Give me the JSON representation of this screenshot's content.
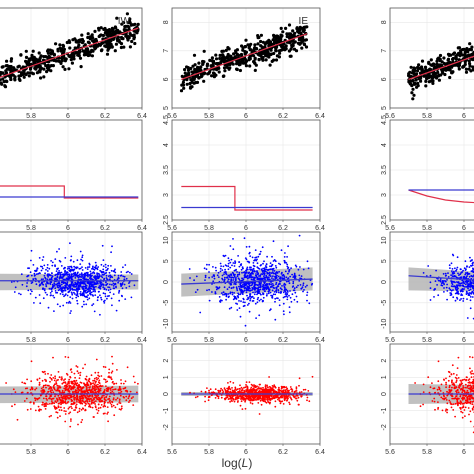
{
  "figure": {
    "xlabel_prefix": "log(",
    "xlabel_var": "L",
    "xlabel_suffix": ")"
  },
  "colors": {
    "points_black": "#000000",
    "points_blue": "#0000ff",
    "points_red": "#ff0000",
    "fit_red": "#e0304a",
    "fit_blue": "#3a3ad0",
    "band_gray": "#b5b5b5",
    "zero_line": "#666666",
    "grid": "#e6e6e6"
  },
  "chart_data": [
    {
      "type": "scatter",
      "panel": "row1-col1",
      "panel_label": "IW",
      "xlim": [
        5.6,
        6.4
      ],
      "ylim": [
        5,
        8.5
      ],
      "x_ticks": [
        "5.8",
        "6",
        "6.2",
        "6.4"
      ],
      "y_ticks": [],
      "series": [
        {
          "kind": "points",
          "color": "black",
          "trend": {
            "x": [
              5.6,
              6.38
            ],
            "y": [
              6.0,
              7.8
            ]
          },
          "spread": 0.22
        },
        {
          "kind": "fit_line",
          "color": "red",
          "x": [
            5.6,
            6.38
          ],
          "y": [
            6.0,
            7.8
          ]
        }
      ]
    },
    {
      "type": "scatter",
      "panel": "row1-col2",
      "panel_label": "IE",
      "xlim": [
        5.6,
        6.4
      ],
      "ylim": [
        5,
        8.5
      ],
      "x_ticks": [
        "5.6",
        "5.8",
        "6",
        "6.2",
        "6.4"
      ],
      "y_ticks": [
        "5",
        "6",
        "7",
        "8"
      ],
      "series": [
        {
          "kind": "points",
          "color": "black",
          "trend": {
            "x": [
              5.65,
              6.33
            ],
            "y": [
              6.0,
              7.6
            ]
          },
          "spread": 0.22
        },
        {
          "kind": "fit_line",
          "color": "red",
          "x": [
            5.65,
            6.33
          ],
          "y": [
            6.0,
            7.6
          ]
        }
      ]
    },
    {
      "type": "scatter",
      "panel": "row1-col3",
      "panel_label": "",
      "xlim": [
        5.6,
        6.4
      ],
      "ylim": [
        5,
        8.5
      ],
      "x_ticks": [
        "5.6",
        "5.8",
        "6"
      ],
      "y_ticks": [
        "5",
        "6",
        "7",
        "8"
      ],
      "series": [
        {
          "kind": "points",
          "color": "black",
          "trend": {
            "x": [
              5.7,
              6.4
            ],
            "y": [
              6.0,
              7.6
            ]
          },
          "spread": 0.22
        },
        {
          "kind": "fit_line",
          "color": "red",
          "x": [
            5.7,
            6.4
          ],
          "y": [
            6.0,
            7.6
          ]
        }
      ]
    },
    {
      "type": "line",
      "panel": "row2-col1",
      "xlim": [
        5.6,
        6.4
      ],
      "ylim": [
        2.5,
        4.5
      ],
      "x_ticks": [
        "5.8",
        "6",
        "6.2",
        "6.4"
      ],
      "y_ticks": [],
      "series": [
        {
          "kind": "step_line",
          "color": "red",
          "x": [
            5.6,
            5.98,
            5.98,
            6.38
          ],
          "y": [
            3.18,
            3.18,
            2.94,
            2.94
          ]
        },
        {
          "kind": "step_line",
          "color": "blue",
          "x": [
            5.6,
            6.38
          ],
          "y": [
            2.96,
            2.96
          ]
        }
      ]
    },
    {
      "type": "line",
      "panel": "row2-col2",
      "xlim": [
        5.6,
        6.4
      ],
      "ylim": [
        2.5,
        4.5
      ],
      "x_ticks": [
        "5.6",
        "5.8",
        "6",
        "6.2",
        "6.4"
      ],
      "y_ticks": [
        "2.5",
        "3",
        "3.5",
        "4",
        "4.5"
      ],
      "series": [
        {
          "kind": "step_line",
          "color": "red",
          "x": [
            5.65,
            5.94,
            5.94,
            6.36
          ],
          "y": [
            3.17,
            3.17,
            2.7,
            2.7
          ]
        },
        {
          "kind": "step_line",
          "color": "blue",
          "x": [
            5.65,
            6.36
          ],
          "y": [
            2.75,
            2.75
          ]
        }
      ]
    },
    {
      "type": "line",
      "panel": "row2-col3",
      "xlim": [
        5.6,
        6.4
      ],
      "ylim": [
        2.5,
        4.5
      ],
      "x_ticks": [
        "5.6",
        "5.8",
        "6"
      ],
      "y_ticks": [
        "2.5",
        "3",
        "3.5",
        "4",
        "4.5"
      ],
      "series": [
        {
          "kind": "curve",
          "color": "red",
          "x": [
            5.7,
            5.8,
            5.9,
            6.0,
            6.1,
            6.25,
            6.3,
            6.3,
            6.4
          ],
          "y": [
            3.1,
            2.98,
            2.9,
            2.86,
            2.84,
            2.86,
            2.98,
            3.55,
            3.62
          ]
        },
        {
          "kind": "step_line",
          "color": "blue",
          "x": [
            5.7,
            6.3
          ],
          "y": [
            3.1,
            3.1
          ]
        }
      ]
    },
    {
      "type": "scatter",
      "panel": "row3-col1",
      "xlim": [
        5.6,
        6.4
      ],
      "ylim": [
        -12,
        12
      ],
      "x_ticks": [
        "5.8",
        "6",
        "6.2",
        "6.4"
      ],
      "y_ticks": [],
      "series": [
        {
          "kind": "points",
          "color": "blue",
          "center": 6.06,
          "spread_x": 0.13,
          "spread_y": 2.1,
          "span": [
            5.6,
            6.38
          ]
        },
        {
          "kind": "band",
          "color": "gray",
          "x": [
            5.6,
            6.38
          ],
          "lo": [
            -2.0,
            -1.8
          ],
          "hi": [
            2.0,
            1.8
          ]
        },
        {
          "kind": "fit_line",
          "color": "blue",
          "x": [
            5.6,
            6.38
          ],
          "y": [
            0.3,
            0.3
          ]
        }
      ]
    },
    {
      "type": "scatter",
      "panel": "row3-col2",
      "xlim": [
        5.6,
        6.4
      ],
      "ylim": [
        -12,
        12
      ],
      "x_ticks": [
        "5.6",
        "5.8",
        "6",
        "6.2",
        "6.4"
      ],
      "y_ticks": [
        "-10",
        "-5",
        "0",
        "5",
        "10"
      ],
      "series": [
        {
          "kind": "points",
          "color": "blue",
          "center": 6.06,
          "spread_x": 0.12,
          "spread_y": 2.6,
          "span": [
            5.65,
            6.36
          ]
        },
        {
          "kind": "band",
          "color": "gray",
          "x": [
            5.65,
            6.36
          ],
          "lo": [
            -3.5,
            -2.0
          ],
          "hi": [
            2.0,
            3.5
          ]
        },
        {
          "kind": "fit_line",
          "color": "blue",
          "x": [
            5.65,
            6.36
          ],
          "y": [
            -0.5,
            0.7
          ]
        }
      ]
    },
    {
      "type": "scatter",
      "panel": "row3-col3",
      "xlim": [
        5.6,
        6.4
      ],
      "ylim": [
        -12,
        12
      ],
      "x_ticks": [
        "5.6",
        "5.8",
        "6"
      ],
      "y_ticks": [
        "-10",
        "-5",
        "0",
        "5",
        "10"
      ],
      "series": [
        {
          "kind": "points",
          "color": "blue",
          "center": 6.1,
          "spread_x": 0.12,
          "spread_y": 2.1,
          "span": [
            5.7,
            6.4
          ]
        },
        {
          "kind": "band",
          "color": "gray",
          "x": [
            5.7,
            6.4
          ],
          "lo": [
            -2.0,
            -2.5
          ],
          "hi": [
            3.5,
            1.5
          ]
        },
        {
          "kind": "fit_line",
          "color": "blue",
          "x": [
            5.7,
            6.4
          ],
          "y": [
            1.5,
            -0.5
          ]
        }
      ]
    },
    {
      "type": "scatter",
      "panel": "row4-col1",
      "xlim": [
        5.6,
        6.4
      ],
      "ylim": [
        -3,
        3
      ],
      "x_ticks": [
        "5.8",
        "6",
        "6.2",
        "6.4"
      ],
      "y_ticks": [],
      "series": [
        {
          "kind": "points",
          "color": "red",
          "center": 6.06,
          "spread_x": 0.13,
          "spread_y": 0.55,
          "span": [
            5.6,
            6.38
          ]
        },
        {
          "kind": "band",
          "color": "gray",
          "x": [
            5.6,
            6.38
          ],
          "lo": [
            -0.55,
            -0.5
          ],
          "hi": [
            0.45,
            0.5
          ]
        },
        {
          "kind": "fit_line",
          "color": "blue",
          "x": [
            5.6,
            6.38
          ],
          "y": [
            0.0,
            0.0
          ]
        }
      ]
    },
    {
      "type": "scatter",
      "panel": "row4-col2",
      "xlim": [
        5.6,
        6.4
      ],
      "ylim": [
        -3,
        3
      ],
      "x_ticks": [
        "5.6",
        "5.8",
        "6",
        "6.2",
        "6.4"
      ],
      "y_ticks": [
        "-2",
        "-1",
        "0",
        "1",
        "2"
      ],
      "series": [
        {
          "kind": "points",
          "color": "red",
          "center": 6.06,
          "spread_x": 0.12,
          "spread_y": 0.22,
          "span": [
            5.65,
            6.36
          ]
        },
        {
          "kind": "band",
          "color": "gray",
          "x": [
            5.65,
            6.36
          ],
          "lo": [
            -0.12,
            -0.12
          ],
          "hi": [
            0.12,
            0.12
          ]
        },
        {
          "kind": "fit_line",
          "color": "blue",
          "x": [
            5.65,
            6.36
          ],
          "y": [
            0.0,
            0.0
          ]
        }
      ]
    },
    {
      "type": "scatter",
      "panel": "row4-col3",
      "xlim": [
        5.6,
        6.4
      ],
      "ylim": [
        -3,
        3
      ],
      "x_ticks": [
        "5.6",
        "5.8",
        "6"
      ],
      "y_ticks": [
        "-2",
        "-1",
        "0",
        "1",
        "2"
      ],
      "series": [
        {
          "kind": "points",
          "color": "red",
          "center": 6.1,
          "spread_x": 0.12,
          "spread_y": 0.55,
          "span": [
            5.7,
            6.4
          ]
        },
        {
          "kind": "band",
          "color": "gray",
          "x": [
            5.7,
            6.4
          ],
          "lo": [
            -0.6,
            -0.5
          ],
          "hi": [
            0.6,
            0.5
          ]
        },
        {
          "kind": "fit_line",
          "color": "blue",
          "x": [
            5.7,
            6.4
          ],
          "y": [
            0.0,
            0.0
          ]
        }
      ]
    }
  ]
}
